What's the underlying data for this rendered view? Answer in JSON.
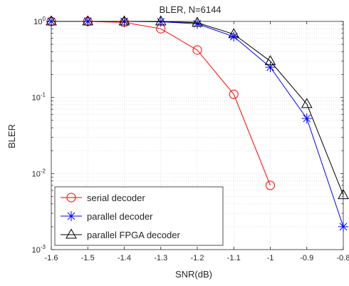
{
  "chart_data": {
    "type": "line",
    "title": "BLER, N=6144",
    "xlabel": "SNR(dB)",
    "ylabel": "BLER",
    "xlim": [
      -1.6,
      -0.8
    ],
    "ylim": [
      0.001,
      1
    ],
    "yscale": "log",
    "grid": true,
    "legend_position": "bottom-left",
    "x_ticks": [
      "-1.6",
      "-1.5",
      "-1.4",
      "-1.3",
      "-1.2",
      "-1.1",
      "-1",
      "-0.9",
      "-0.8"
    ],
    "x_tick_values": [
      -1.6,
      -1.5,
      -1.4,
      -1.3,
      -1.2,
      -1.1,
      -1.0,
      -0.9,
      -0.8
    ],
    "y_ticks": [
      {
        "base": "10",
        "exp": "0",
        "value": 1
      },
      {
        "base": "10",
        "exp": "-1",
        "value": 0.1
      },
      {
        "base": "10",
        "exp": "-2",
        "value": 0.01
      },
      {
        "base": "10",
        "exp": "-3",
        "value": 0.001
      }
    ],
    "series": [
      {
        "name": "serial decoder",
        "color": "#ff0000",
        "marker": "circle",
        "x": [
          -1.6,
          -1.5,
          -1.4,
          -1.3,
          -1.2,
          -1.1,
          -1.0
        ],
        "y": [
          1.0,
          1.0,
          0.97,
          0.8,
          0.42,
          0.11,
          0.007
        ]
      },
      {
        "name": "parallel decoder",
        "color": "#0000ff",
        "marker": "asterisk",
        "x": [
          -1.6,
          -1.5,
          -1.4,
          -1.3,
          -1.2,
          -1.1,
          -1.0,
          -0.9,
          -0.8
        ],
        "y": [
          1.0,
          1.0,
          1.0,
          0.99,
          0.93,
          0.63,
          0.25,
          0.053,
          0.002
        ]
      },
      {
        "name": "parallel FPGA decoder",
        "color": "#000000",
        "marker": "triangle",
        "x": [
          -1.6,
          -1.5,
          -1.4,
          -1.3,
          -1.2,
          -1.1,
          -1.0,
          -0.9,
          -0.8
        ],
        "y": [
          1.0,
          1.0,
          1.0,
          1.0,
          0.96,
          0.68,
          0.3,
          0.082,
          0.0052
        ]
      }
    ]
  }
}
